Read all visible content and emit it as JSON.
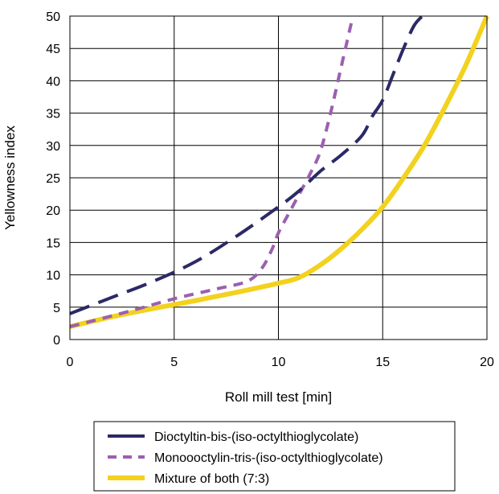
{
  "chart_data": {
    "type": "line",
    "title": "",
    "xlabel": "Roll mill test [min]",
    "ylabel": "Yellowness index",
    "xlim": [
      0,
      20
    ],
    "ylim": [
      0,
      50
    ],
    "xticks": [
      0,
      5,
      10,
      15,
      20
    ],
    "yticks": [
      0,
      5,
      10,
      15,
      20,
      25,
      30,
      35,
      40,
      45,
      50
    ],
    "grid": true,
    "legend_position": "bottom",
    "series": [
      {
        "name": "Dioctyltin-bis-(iso-octylthioglycolate)",
        "color": "#2b2a66",
        "style": "long-dash",
        "x": [
          0,
          2,
          4,
          6,
          8,
          10,
          11,
          12,
          13,
          14,
          14.5,
          15,
          15.5,
          16,
          16.5,
          16.9
        ],
        "y": [
          4,
          6.5,
          9,
          12,
          16,
          20.5,
          23,
          26,
          28.5,
          31.5,
          34.5,
          37,
          41,
          45,
          48.5,
          50
        ]
      },
      {
        "name": "Monoooctylin-tris-(iso-octylthioglycolate)",
        "color": "#9c5fb0",
        "style": "short-dash",
        "x": [
          0,
          1,
          3,
          5,
          7,
          8.5,
          9.2,
          9.7,
          10,
          10.5,
          11,
          11.5,
          12,
          12.5,
          13,
          13.5
        ],
        "y": [
          2,
          2.8,
          4.5,
          6.3,
          7.8,
          9,
          11,
          14,
          16.5,
          19.5,
          22.5,
          25.5,
          29,
          35,
          42,
          49
        ]
      },
      {
        "name": "Mixture of both (7:3)",
        "color": "#f2d21e",
        "style": "solid",
        "x": [
          0,
          2,
          4,
          6,
          8,
          10,
          11,
          12,
          13,
          14,
          15,
          16,
          17,
          18,
          19,
          20
        ],
        "y": [
          2,
          3.5,
          4.8,
          6,
          7.3,
          8.7,
          9.6,
          11.5,
          14,
          17,
          20.5,
          25,
          30,
          36,
          42.5,
          50
        ]
      }
    ]
  }
}
